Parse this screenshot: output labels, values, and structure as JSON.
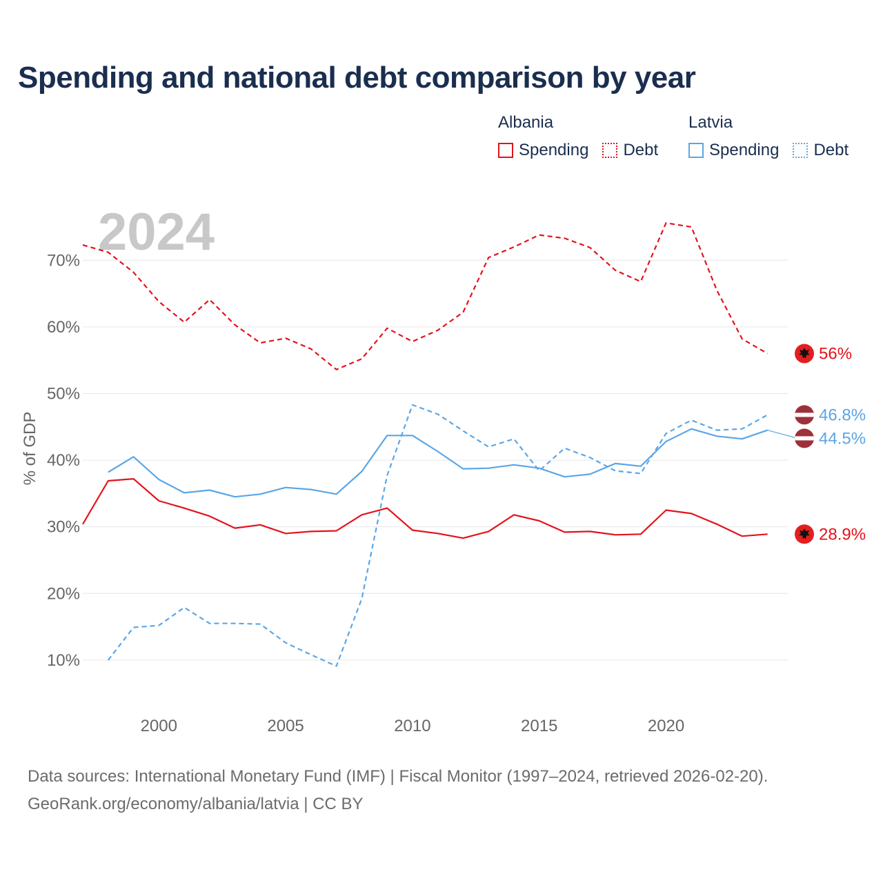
{
  "title": "Spending and national debt comparison by year",
  "legend": {
    "groups": [
      {
        "name": "Albania",
        "items": [
          {
            "label": "Spending",
            "style": "solid"
          },
          {
            "label": "Debt",
            "style": "dotted"
          }
        ],
        "color": "#e3121b"
      },
      {
        "name": "Latvia",
        "items": [
          {
            "label": "Spending",
            "style": "solid"
          },
          {
            "label": "Debt",
            "style": "dotted"
          }
        ],
        "color": "#5aa6e6"
      }
    ]
  },
  "footer": {
    "line1": "Data sources: International Monetary Fund (IMF) | Fiscal Monitor (1997–2024, retrieved 2026-02-20).",
    "line2": "GeoRank.org/economy/albania/latvia | CC BY"
  },
  "colors": {
    "albania": "#e3121b",
    "latvia": "#5aa6e6",
    "grid": "#e6e6e6",
    "axis_text": "#666666",
    "year": "#c8c8c8"
  },
  "chart_data": {
    "type": "line",
    "watermark_year": "2024",
    "ylabel": "% of GDP",
    "xlabel": "",
    "xlim": [
      1997,
      2024.8
    ],
    "ylim": [
      4.5,
      78
    ],
    "y_ticks": [
      10,
      20,
      30,
      40,
      50,
      60,
      70
    ],
    "y_tick_labels": [
      "10%",
      "20%",
      "30%",
      "40%",
      "50%",
      "60%",
      "70%"
    ],
    "x_ticks": [
      2000,
      2005,
      2010,
      2015,
      2020
    ],
    "x_tick_labels": [
      "2000",
      "2005",
      "2010",
      "2015",
      "2020"
    ],
    "series": [
      {
        "name": "Albania Debt",
        "country": "albania",
        "dash": true,
        "end_label": "56%",
        "x": [
          1997,
          1998,
          1999,
          2000,
          2001,
          2002,
          2003,
          2004,
          2005,
          2006,
          2007,
          2008,
          2009,
          2010,
          2011,
          2012,
          2013,
          2014,
          2015,
          2016,
          2017,
          2018,
          2019,
          2020,
          2021,
          2022,
          2023,
          2024
        ],
        "values": [
          72.3,
          71.2,
          68.2,
          63.8,
          60.7,
          64.1,
          60.3,
          57.6,
          58.3,
          56.7,
          53.6,
          55.2,
          59.8,
          57.8,
          59.5,
          62.2,
          70.4,
          72.0,
          73.8,
          73.3,
          71.9,
          68.5,
          66.8,
          75.6,
          75.0,
          65.5,
          58.2,
          56.0
        ]
      },
      {
        "name": "Albania Spending",
        "country": "albania",
        "dash": false,
        "end_label": "28.9%",
        "x": [
          1997,
          1998,
          1999,
          2000,
          2001,
          2002,
          2003,
          2004,
          2005,
          2006,
          2007,
          2008,
          2009,
          2010,
          2011,
          2012,
          2013,
          2014,
          2015,
          2016,
          2017,
          2018,
          2019,
          2020,
          2021,
          2022,
          2023,
          2024
        ],
        "values": [
          30.4,
          36.9,
          37.2,
          33.9,
          32.8,
          31.6,
          29.8,
          30.3,
          29.0,
          29.3,
          29.4,
          31.8,
          32.8,
          29.5,
          29.0,
          28.3,
          29.3,
          31.8,
          30.9,
          29.2,
          29.3,
          28.8,
          28.9,
          32.5,
          32.0,
          30.4,
          28.6,
          28.9
        ]
      },
      {
        "name": "Latvia Debt",
        "country": "latvia",
        "dash": true,
        "end_label": "46.8%",
        "x": [
          1998,
          1999,
          2000,
          2001,
          2002,
          2003,
          2004,
          2005,
          2006,
          2007,
          2008,
          2009,
          2010,
          2011,
          2012,
          2013,
          2014,
          2015,
          2016,
          2017,
          2018,
          2019,
          2020,
          2021,
          2022,
          2023,
          2024
        ],
        "values": [
          10.0,
          14.9,
          15.2,
          17.9,
          15.5,
          15.5,
          15.4,
          12.6,
          10.8,
          9.1,
          19.2,
          37.7,
          48.3,
          46.9,
          44.4,
          42.0,
          43.2,
          38.4,
          41.8,
          40.4,
          38.4,
          38.0,
          44.0,
          46.0,
          44.5,
          44.7,
          46.8
        ]
      },
      {
        "name": "Latvia Spending",
        "country": "latvia",
        "dash": false,
        "end_label": "44.5%",
        "x": [
          1998,
          1999,
          2000,
          2001,
          2002,
          2003,
          2004,
          2005,
          2006,
          2007,
          2008,
          2009,
          2010,
          2011,
          2012,
          2013,
          2014,
          2015,
          2016,
          2017,
          2018,
          2019,
          2020,
          2021,
          2022,
          2023,
          2024
        ],
        "values": [
          38.2,
          40.5,
          37.1,
          35.1,
          35.5,
          34.5,
          34.9,
          35.9,
          35.6,
          34.9,
          38.3,
          43.7,
          43.7,
          41.3,
          38.7,
          38.8,
          39.3,
          38.8,
          37.5,
          37.9,
          39.5,
          39.1,
          42.8,
          44.7,
          43.6,
          43.2,
          44.5
        ]
      }
    ]
  }
}
